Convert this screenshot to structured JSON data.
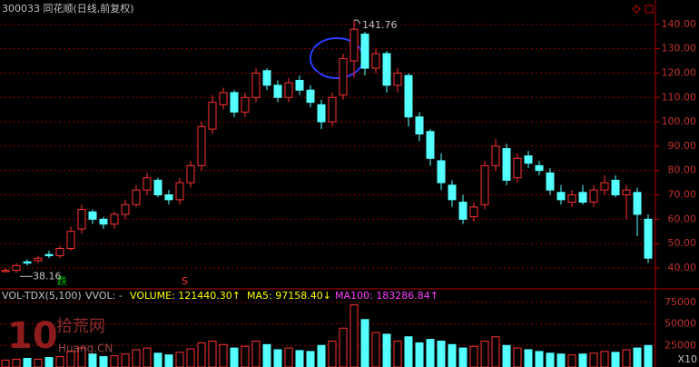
{
  "chart_data": {
    "type": "candlestick",
    "title": "300033 同花顺(日线,前复权)",
    "open": [
      38.5,
      39,
      42.5,
      43,
      45.5,
      45,
      48,
      56,
      63,
      60,
      58,
      62,
      66,
      72,
      76,
      70,
      68,
      75,
      82,
      97,
      107,
      112,
      104,
      110,
      121,
      115,
      110,
      117,
      113,
      107,
      100,
      111,
      125,
      136,
      122,
      128,
      115,
      119,
      102,
      96,
      84,
      74,
      67,
      61,
      66,
      82,
      89,
      77,
      86,
      82,
      79,
      71,
      67,
      71,
      67,
      72,
      76,
      70,
      71,
      60
    ],
    "high": [
      40,
      42,
      43.5,
      45,
      47,
      49,
      57,
      66,
      64,
      61,
      63,
      68,
      74,
      79,
      77,
      72,
      77,
      84,
      100,
      111,
      114,
      113,
      112,
      122,
      122,
      117,
      118,
      119,
      115,
      109,
      112,
      128,
      141.76,
      137,
      130,
      129,
      122,
      120,
      104,
      97,
      87,
      76,
      70,
      67,
      84,
      93,
      91,
      87,
      88,
      84,
      81,
      74,
      72,
      74,
      74,
      78,
      78,
      74,
      73,
      62
    ],
    "low": [
      38.16,
      38,
      41,
      42,
      44,
      44,
      47,
      54,
      58,
      56,
      56,
      60,
      65,
      70,
      69,
      66,
      66,
      73,
      80,
      95,
      105,
      102,
      102,
      108,
      113,
      108,
      108,
      111,
      106,
      97,
      98,
      109,
      118,
      119,
      120,
      112,
      112,
      98,
      92,
      82,
      72,
      65,
      58,
      59,
      64,
      80,
      74,
      75,
      81,
      78,
      70,
      66,
      65,
      66,
      65,
      70,
      69,
      60,
      53,
      42
    ],
    "close": [
      39,
      41,
      42,
      44,
      45,
      48,
      55,
      64,
      60,
      58,
      62,
      66,
      72,
      77,
      70,
      68,
      75,
      82,
      98,
      108,
      112,
      104,
      110,
      120,
      115,
      110,
      116,
      113,
      108,
      100,
      110,
      126,
      138,
      122,
      128,
      115,
      120,
      102,
      95,
      85,
      75,
      68,
      60,
      65,
      82,
      90,
      76,
      85,
      83,
      80,
      72,
      68,
      70,
      67,
      72,
      75,
      70,
      72,
      62,
      44
    ],
    "ylim": [
      31.4,
      150
    ],
    "yticks": [
      {
        "value": 40,
        "label": "40.00"
      },
      {
        "value": 50,
        "label": "50.00"
      },
      {
        "value": 60,
        "label": "60.00"
      },
      {
        "value": 70,
        "label": "70.00"
      },
      {
        "value": 80,
        "label": "80.00"
      },
      {
        "value": 90,
        "label": "90.00"
      },
      {
        "value": 100,
        "label": "100.00"
      },
      {
        "value": 110,
        "label": "110.00"
      },
      {
        "value": 120,
        "label": "120.00"
      },
      {
        "value": 130,
        "label": "130.00"
      },
      {
        "value": 140,
        "label": "140.00"
      }
    ],
    "max_label": "141.76",
    "min_label": "38.16",
    "signals": [
      "跌",
      "S"
    ],
    "up_color": "#ff3232",
    "down_color": "#54ffff",
    "volume": {
      "labels": [
        "VOL-TDX(5,100)",
        "VVOL: -",
        "VOLUME: 121440.30↑",
        "MA5: 97158.40↓",
        "MA100: 183286.84↑"
      ],
      "values": [
        8000,
        9000,
        10000,
        9000,
        11000,
        12000,
        18000,
        22000,
        15000,
        12000,
        13000,
        15000,
        20000,
        22000,
        16000,
        14000,
        17000,
        21000,
        28000,
        30000,
        26000,
        22000,
        24000,
        30000,
        26000,
        20000,
        22000,
        19000,
        18000,
        25000,
        30000,
        45000,
        72000,
        55000,
        40000,
        38000,
        30000,
        35000,
        28000,
        32000,
        30000,
        26000,
        22000,
        24000,
        30000,
        35000,
        25000,
        22000,
        20000,
        18000,
        16000,
        15000,
        14000,
        15000,
        16000,
        18000,
        17000,
        20000,
        22000,
        25000
      ],
      "ylim": [
        0,
        80000
      ],
      "yticks": [
        25000,
        50000,
        75000
      ],
      "scale_label": "X10"
    },
    "watermark": [
      "10",
      "拾荒网",
      "Huang.CN"
    ]
  }
}
